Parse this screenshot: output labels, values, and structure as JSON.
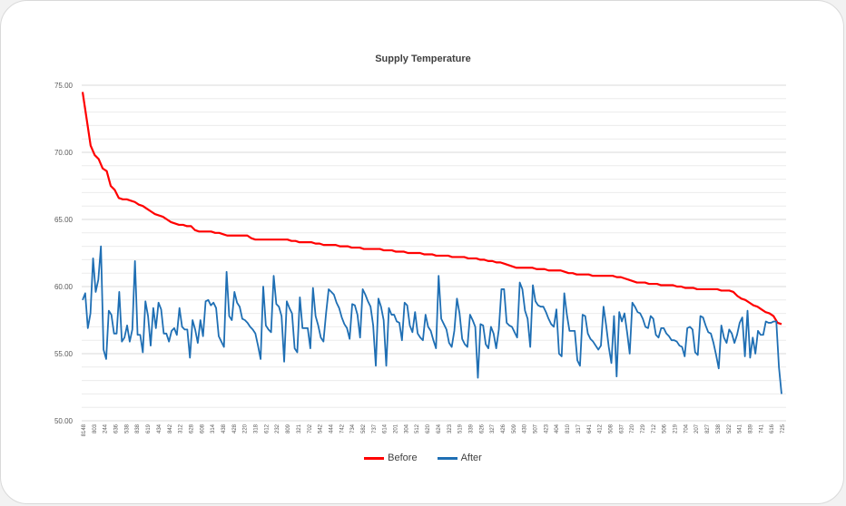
{
  "chart_data": {
    "type": "line",
    "title": "Supply Temperature",
    "xlabel": "",
    "ylabel": "",
    "ylim": [
      50,
      75
    ],
    "yticks": [
      "50.00",
      "55.00",
      "60.00",
      "65.00",
      "70.00",
      "75.00"
    ],
    "grid": true,
    "legend_position": "bottom",
    "x_tick_labels": [
      "8148",
      "803",
      "244",
      "636",
      "538",
      "838",
      "619",
      "434",
      "842",
      "312",
      "628",
      "608",
      "314",
      "438",
      "428",
      "220",
      "318",
      "612",
      "232",
      "809",
      "321",
      "702",
      "542",
      "444",
      "742",
      "734",
      "582",
      "737",
      "614",
      "201",
      "304",
      "512",
      "620",
      "624",
      "323",
      "519",
      "339",
      "626",
      "327",
      "426",
      "509",
      "430",
      "507",
      "423",
      "404",
      "810",
      "317",
      "641",
      "412",
      "508",
      "637",
      "720",
      "729",
      "712",
      "506",
      "219",
      "704",
      "207",
      "827",
      "538",
      "522",
      "541",
      "839",
      "741",
      "616",
      "725"
    ],
    "series": [
      {
        "name": "Before",
        "color": "#ff0000",
        "values": [
          74.5,
          72.5,
          70.5,
          69.8,
          69.5,
          68.8,
          68.6,
          67.5,
          67.2,
          66.6,
          66.5,
          66.5,
          66.4,
          66.3,
          66.1,
          66.0,
          65.8,
          65.6,
          65.4,
          65.3,
          65.2,
          65.0,
          64.8,
          64.7,
          64.6,
          64.6,
          64.5,
          64.5,
          64.2,
          64.1,
          64.1,
          64.1,
          64.1,
          64.0,
          64.0,
          63.9,
          63.8,
          63.8,
          63.8,
          63.8,
          63.8,
          63.8,
          63.6,
          63.5,
          63.5,
          63.5,
          63.5,
          63.5,
          63.5,
          63.5,
          63.5,
          63.5,
          63.4,
          63.4,
          63.3,
          63.3,
          63.3,
          63.3,
          63.2,
          63.2,
          63.1,
          63.1,
          63.1,
          63.1,
          63.0,
          63.0,
          63.0,
          62.9,
          62.9,
          62.9,
          62.8,
          62.8,
          62.8,
          62.8,
          62.8,
          62.7,
          62.7,
          62.7,
          62.6,
          62.6,
          62.6,
          62.5,
          62.5,
          62.5,
          62.5,
          62.4,
          62.4,
          62.4,
          62.3,
          62.3,
          62.3,
          62.3,
          62.2,
          62.2,
          62.2,
          62.2,
          62.1,
          62.1,
          62.1,
          62.0,
          62.0,
          61.9,
          61.9,
          61.8,
          61.8,
          61.7,
          61.6,
          61.5,
          61.4,
          61.4,
          61.4,
          61.4,
          61.4,
          61.3,
          61.3,
          61.3,
          61.2,
          61.2,
          61.2,
          61.2,
          61.1,
          61.0,
          61.0,
          60.9,
          60.9,
          60.9,
          60.9,
          60.8,
          60.8,
          60.8,
          60.8,
          60.8,
          60.8,
          60.7,
          60.7,
          60.6,
          60.5,
          60.4,
          60.3,
          60.3,
          60.3,
          60.2,
          60.2,
          60.2,
          60.1,
          60.1,
          60.1,
          60.1,
          60.0,
          60.0,
          59.9,
          59.9,
          59.9,
          59.8,
          59.8,
          59.8,
          59.8,
          59.8,
          59.8,
          59.7,
          59.7,
          59.7,
          59.6,
          59.3,
          59.1,
          59.0,
          58.8,
          58.6,
          58.5,
          58.3,
          58.1,
          58.0,
          57.8,
          57.3,
          57.2
        ],
        "values_note": ""
      },
      {
        "name": "After",
        "color": "#1f6fb4",
        "values": [
          59.0,
          59.5,
          56.9,
          58.0,
          62.1,
          59.6,
          60.5,
          63.0,
          55.3,
          54.6,
          58.2,
          57.9,
          56.5,
          56.5,
          59.6,
          55.9,
          56.2,
          57.1,
          55.9,
          56.8,
          61.9,
          56.4,
          56.4,
          55.1,
          58.9,
          57.8,
          55.6,
          58.4,
          56.9,
          58.8,
          58.3,
          56.5,
          56.5,
          55.9,
          56.7,
          56.9,
          56.4,
          58.4,
          57.0,
          56.8,
          56.8,
          54.7,
          57.5,
          56.8,
          55.8,
          57.5,
          56.3,
          58.9,
          59.0,
          58.6,
          58.8,
          58.4,
          56.3,
          55.9,
          55.5,
          61.1,
          57.8,
          57.5,
          59.6,
          58.8,
          58.5,
          57.6,
          57.5,
          57.3,
          57.0,
          56.8,
          56.5,
          55.6,
          54.6,
          60.0,
          57.1,
          56.8,
          56.6,
          60.8,
          58.7,
          58.5,
          57.8,
          54.4,
          58.9,
          58.4,
          58.0,
          55.4,
          55.1,
          59.2,
          56.9,
          56.9,
          56.9,
          55.4,
          59.9,
          57.8,
          57.1,
          56.2,
          55.9,
          58.0,
          59.8,
          59.6,
          59.4,
          58.8,
          58.4,
          57.7,
          57.2,
          56.9,
          56.1,
          58.7,
          58.6,
          57.9,
          56.2,
          59.8,
          59.4,
          58.9,
          58.5,
          57.1,
          54.1,
          59.1,
          58.5,
          57.5,
          54.1,
          58.4,
          57.9,
          57.9,
          57.4,
          57.3,
          56.0,
          58.8,
          58.6,
          57.1,
          56.6,
          58.1,
          56.5,
          56.2,
          56.0,
          57.9,
          57.0,
          56.7,
          56.0,
          55.4,
          60.8,
          57.6,
          57.2,
          56.8,
          55.8,
          55.5,
          56.7,
          59.1,
          58.0,
          56.1,
          55.7,
          55.5,
          57.9,
          57.5,
          57.0,
          53.2,
          57.2,
          57.1,
          55.7,
          55.4,
          57.0,
          56.5,
          55.4,
          56.8,
          59.8,
          59.8,
          57.3,
          57.1,
          57.0,
          56.6,
          56.2,
          60.3,
          59.8,
          58.2,
          57.6,
          55.5,
          60.1,
          58.9,
          58.6,
          58.5,
          58.5,
          58.1,
          57.6,
          57.2,
          57.0,
          58.3,
          55.0,
          54.8,
          59.5,
          57.9,
          56.7,
          56.7,
          56.7,
          54.5,
          54.1,
          57.9,
          57.8,
          56.5,
          56.1,
          55.9,
          55.6,
          55.3,
          55.6,
          58.5,
          57.1,
          55.5,
          54.3,
          57.8,
          53.3,
          58.1,
          57.4,
          58.0,
          56.6,
          55.0,
          58.8,
          58.5,
          58.1,
          58.0,
          57.6,
          57.0,
          56.9,
          57.8,
          57.6,
          56.4,
          56.2,
          56.9,
          56.9,
          56.5,
          56.3,
          56.0,
          56.0,
          55.9,
          55.6,
          55.5,
          54.8,
          56.9,
          57.0,
          56.8,
          55.1,
          54.9,
          57.8,
          57.7,
          57.1,
          56.6,
          56.5,
          55.8,
          54.9,
          53.9,
          57.1,
          56.2,
          55.8,
          56.8,
          56.5,
          55.8,
          56.4,
          57.3,
          57.7,
          54.8,
          58.2,
          54.7,
          56.2,
          55.0,
          56.7,
          56.4,
          56.4,
          57.4,
          57.3,
          57.3,
          57.4,
          57.4,
          54.0,
          52.0
        ]
      }
    ]
  },
  "legend": {
    "before_label": "Before",
    "after_label": "After"
  }
}
